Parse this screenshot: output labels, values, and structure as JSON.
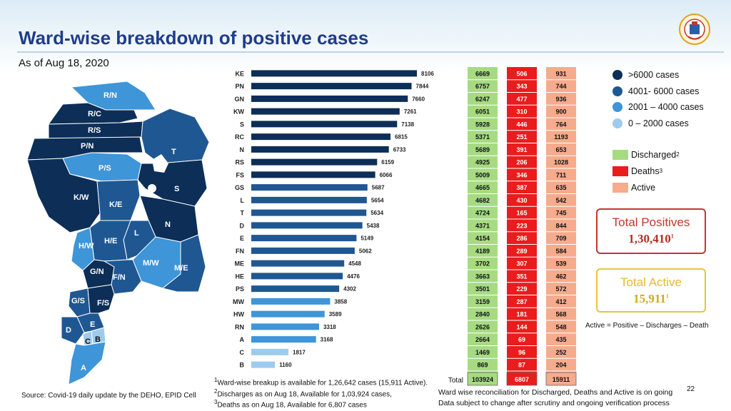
{
  "header": {
    "title": "Ward-wise breakdown of positive cases",
    "as_of": "As of Aug 18, 2020",
    "logo_icon": "bmc-emblem-icon"
  },
  "legend": {
    "ranges": [
      {
        "label": ">6000 cases",
        "color": "#0c2e57"
      },
      {
        "label": "4001- 6000 cases",
        "color": "#1f5792"
      },
      {
        "label": "2001 – 4000 cases",
        "color": "#3e95d8"
      },
      {
        "label": "0 – 2000 cases",
        "color": "#9dcbee"
      }
    ],
    "columns": [
      {
        "label": "Discharged",
        "sup": "2",
        "color": "#a6db82"
      },
      {
        "label": "Deaths",
        "sup": "3",
        "color": "#ea1c1c"
      },
      {
        "label": "Active",
        "sup": "",
        "color": "#f6ab8c"
      }
    ]
  },
  "map": {
    "wards": [
      "R/N",
      "R/C",
      "R/S",
      "P/N",
      "P/S",
      "T",
      "S",
      "K/W",
      "K/E",
      "N",
      "L",
      "H/W",
      "H/E",
      "M/W",
      "M/E",
      "G/N",
      "F/N",
      "G/S",
      "F/S",
      "E",
      "D",
      "C",
      "B",
      "A"
    ]
  },
  "chart_data": {
    "type": "bar",
    "title": "Ward-wise breakdown of positive cases",
    "categories": [
      "KE",
      "PN",
      "GN",
      "KW",
      "S",
      "RC",
      "N",
      "RS",
      "FS",
      "GS",
      "L",
      "T",
      "D",
      "E",
      "FN",
      "ME",
      "HE",
      "PS",
      "MW",
      "HW",
      "RN",
      "A",
      "C",
      "B"
    ],
    "series": [
      {
        "name": "Positive",
        "values": [
          8106,
          7844,
          7660,
          7261,
          7138,
          6815,
          6733,
          6159,
          6066,
          5687,
          5654,
          5634,
          5438,
          5149,
          5062,
          4548,
          4476,
          4302,
          3858,
          3589,
          3318,
          3168,
          1817,
          1160
        ]
      },
      {
        "name": "Discharged",
        "values": [
          6669,
          6757,
          6247,
          6051,
          5928,
          5371,
          5689,
          4925,
          5009,
          4665,
          4682,
          4724,
          4371,
          4154,
          4189,
          3702,
          3663,
          3501,
          3159,
          2840,
          2626,
          2664,
          1469,
          869
        ]
      },
      {
        "name": "Deaths",
        "values": [
          506,
          343,
          477,
          310,
          446,
          251,
          391,
          206,
          346,
          387,
          430,
          165,
          223,
          286,
          289,
          307,
          351,
          229,
          287,
          181,
          144,
          69,
          96,
          87
        ]
      },
      {
        "name": "Active",
        "values": [
          931,
          744,
          936,
          900,
          764,
          1193,
          653,
          1028,
          711,
          635,
          542,
          745,
          844,
          709,
          584,
          539,
          462,
          572,
          412,
          568,
          548,
          435,
          252,
          204
        ]
      }
    ],
    "totals_label": "Total",
    "totals": {
      "discharged": "103924",
      "deaths": "6807",
      "active": "15911"
    },
    "xlim": [
      0,
      8106
    ]
  },
  "boxes": {
    "positives_label": "Total Positives",
    "positives_value": "1,30,410",
    "positives_sup": "1",
    "active_label": "Total Active",
    "active_value": "15,911",
    "active_sup": "1",
    "formula": "Active = Positive – Discharges – Death"
  },
  "footnotes": {
    "fn1": "Ward-wise breakup is available for 1,26,642 cases (15,911 Active).",
    "fn2": "Discharges as on Aug 18, Available for 1,03,924  cases,",
    "fn3": "Deaths as on Aug 18, Available for 6,807 cases",
    "fn1_sup": "1",
    "fn2_sup": "2",
    "fn3_sup": "3",
    "source": "Source: Covid-19 daily update by the DEHO, EPID Cell",
    "note1": "Ward wise reconciliation for Discharged, Deaths and Active is on going",
    "note2": "Data subject to change after scrutiny and ongoing verification process",
    "page_number": "22"
  }
}
